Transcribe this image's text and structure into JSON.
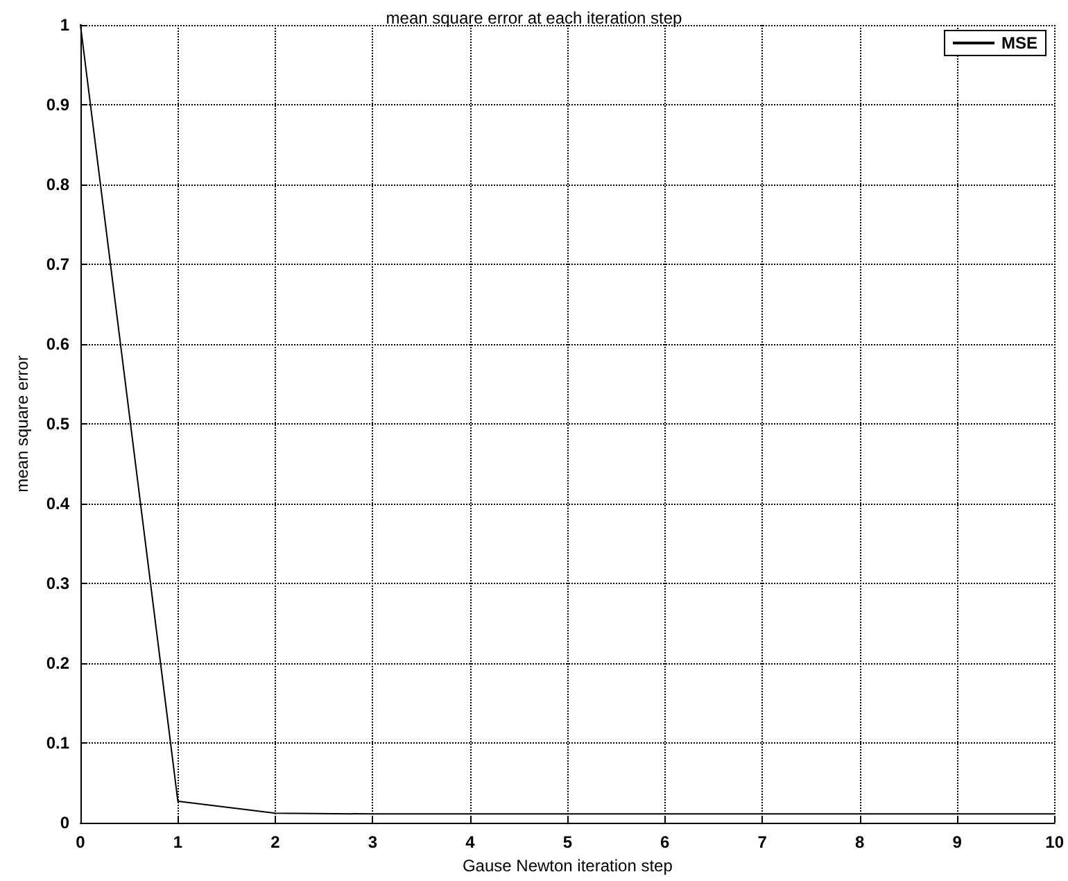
{
  "chart_data": {
    "type": "line",
    "title": "mean square error at each iteration step",
    "xlabel": "Gause Newton iteration step",
    "ylabel": "mean square error",
    "x": [
      0,
      1,
      2,
      3,
      4,
      5,
      6,
      7,
      8,
      9,
      10
    ],
    "series": [
      {
        "name": "MSE",
        "color": "#000000",
        "values": [
          1,
          0.027,
          0.012,
          0.011,
          0.011,
          0.011,
          0.011,
          0.011,
          0.011,
          0.011,
          0.011
        ]
      }
    ],
    "xlim": [
      0,
      10
    ],
    "xticks": [
      0,
      1,
      2,
      3,
      4,
      5,
      6,
      7,
      8,
      9,
      10
    ],
    "ylim": [
      0,
      1
    ],
    "yticks": [
      0,
      0.1,
      0.2,
      0.3,
      0.4,
      0.5,
      0.6,
      0.7,
      0.8,
      0.9,
      1
    ],
    "grid": true,
    "legend": "top right",
    "marker": "none",
    "line_style": "solid"
  }
}
